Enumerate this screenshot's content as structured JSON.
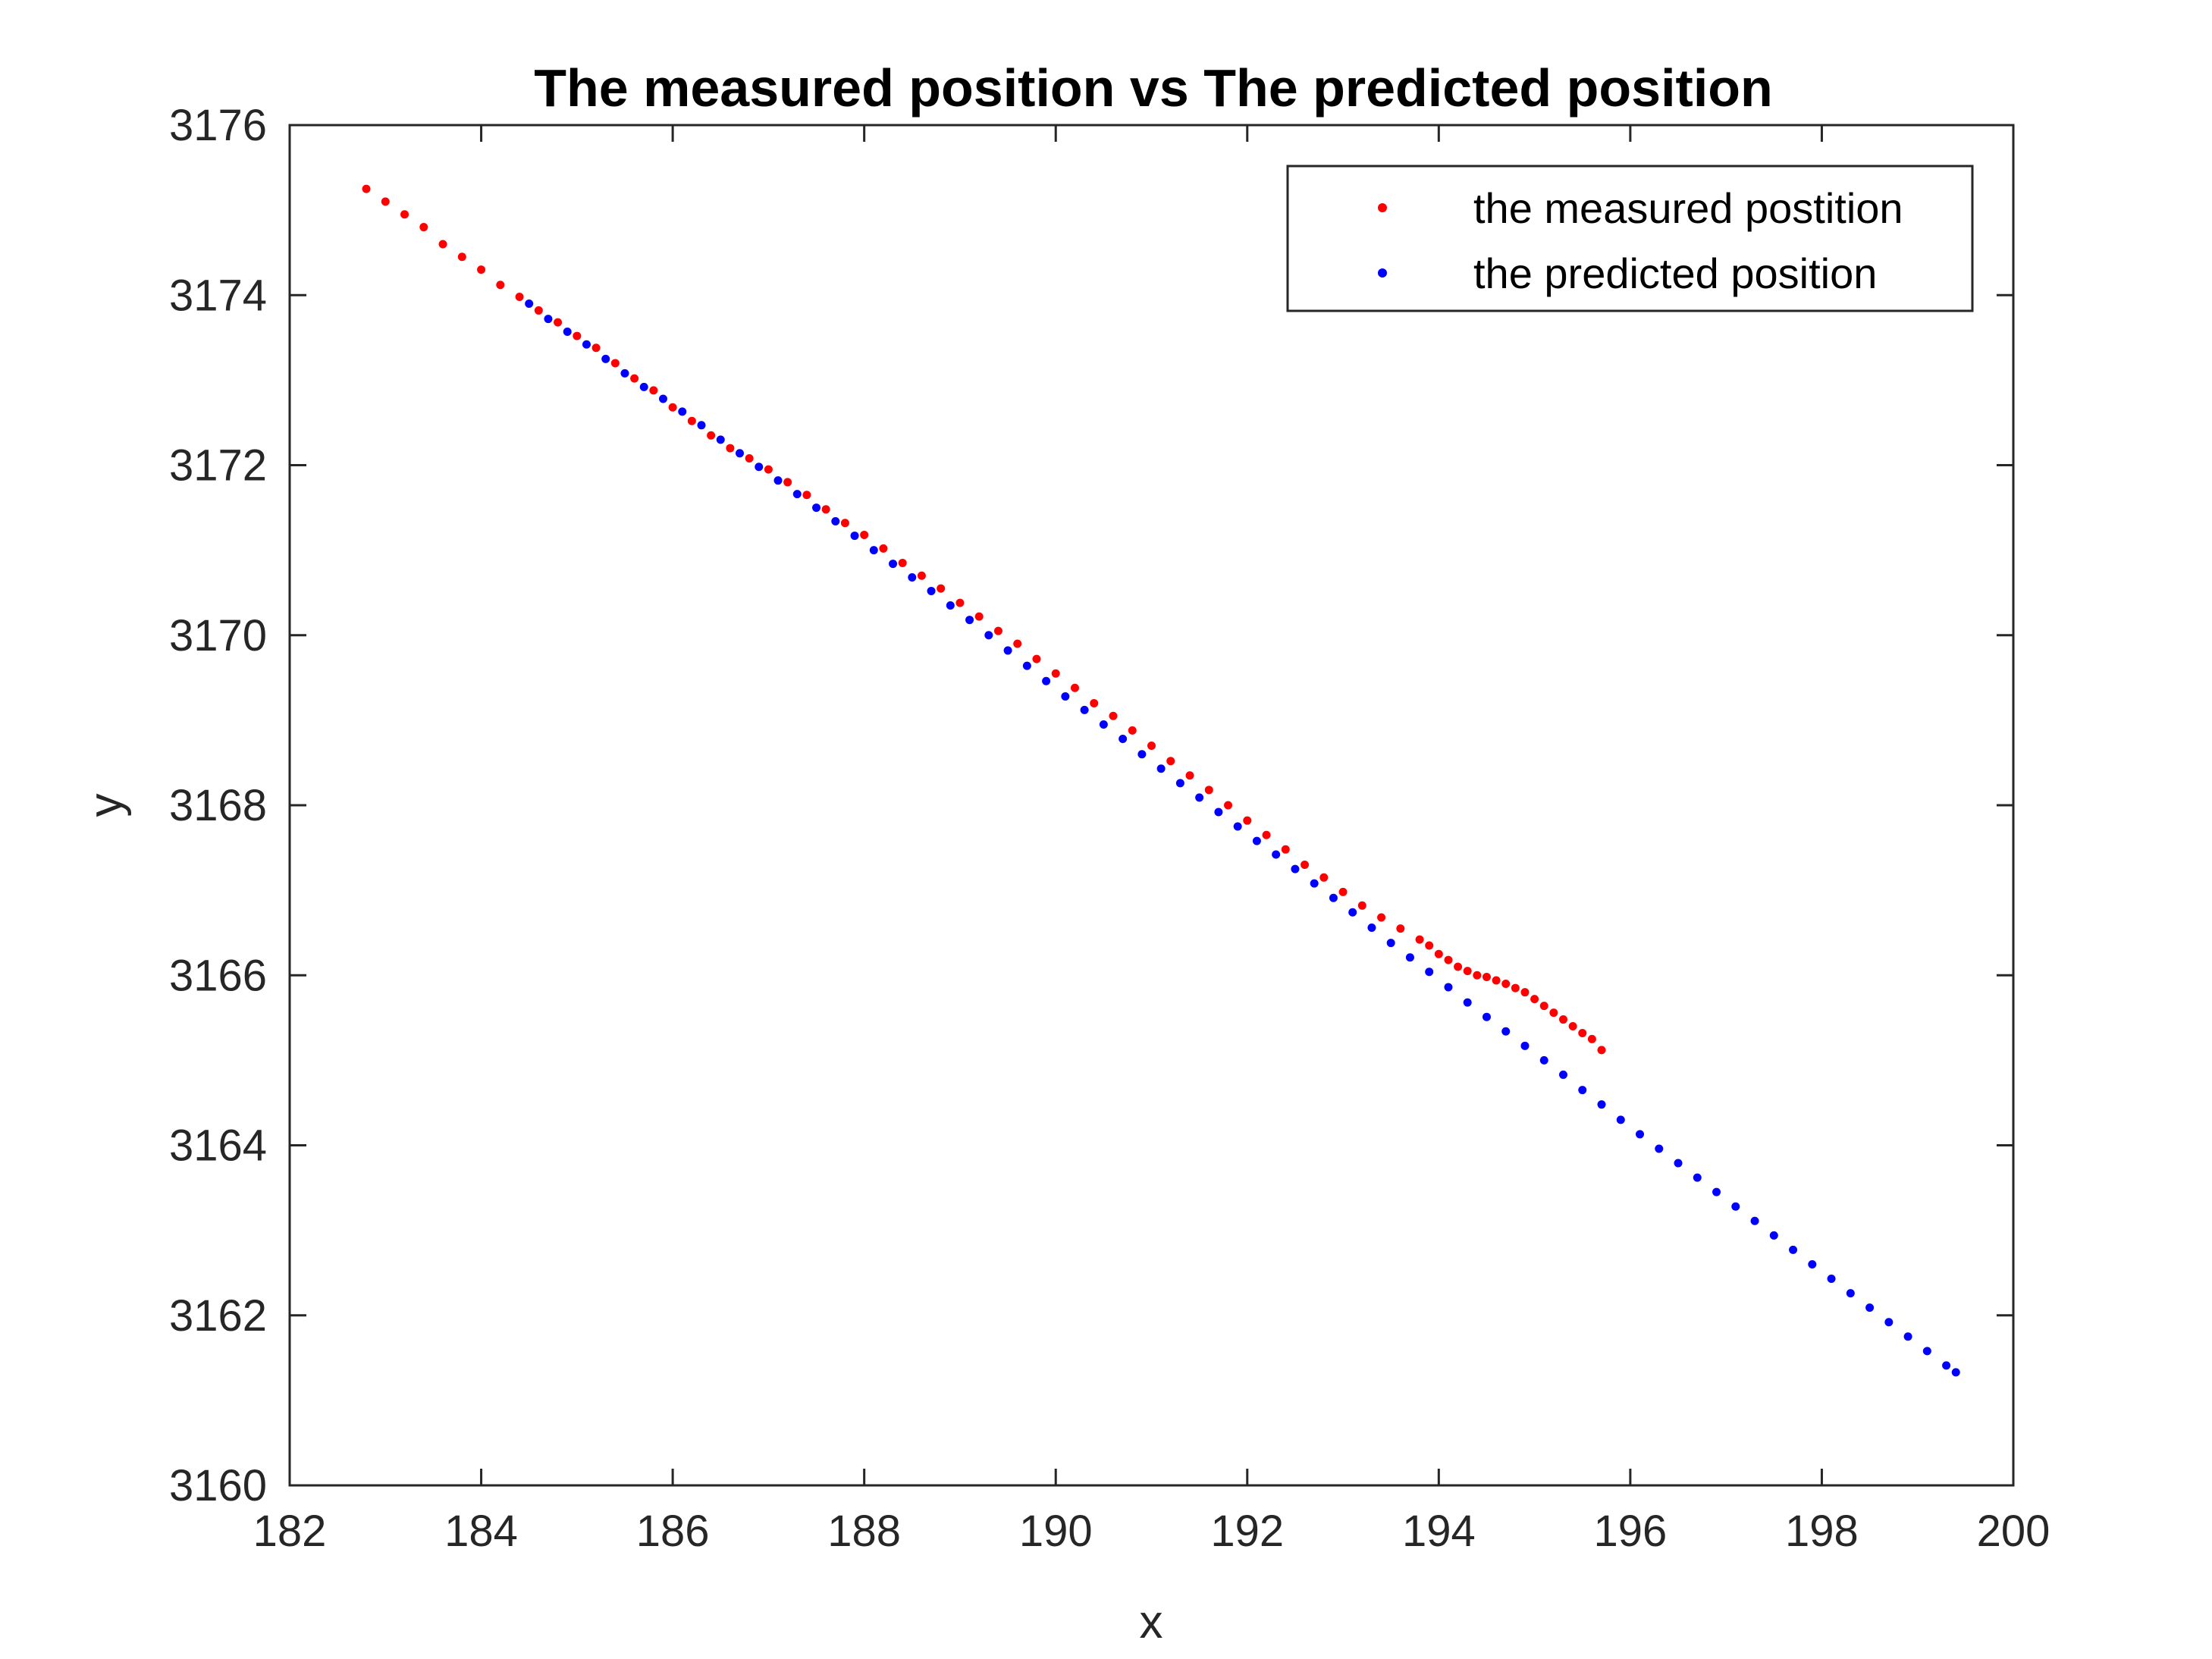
{
  "chart_data": {
    "type": "scatter",
    "title": "The measured position vs The predicted position",
    "xlabel": "x",
    "ylabel": "y",
    "xlim": [
      182,
      200
    ],
    "ylim": [
      3160,
      3176
    ],
    "xticks": [
      "182",
      "184",
      "186",
      "188",
      "190",
      "192",
      "194",
      "196",
      "198",
      "200"
    ],
    "yticks": [
      "3160",
      "3162",
      "3164",
      "3166",
      "3168",
      "3170",
      "3172",
      "3174",
      "3176"
    ],
    "grid": false,
    "legend_position": "top-right",
    "series": [
      {
        "name": "the measured postition",
        "color": "#ff0000",
        "points": [
          [
            182.8,
            3175.25
          ],
          [
            183.0,
            3175.1
          ],
          [
            183.2,
            3174.95
          ],
          [
            183.4,
            3174.8
          ],
          [
            183.6,
            3174.6
          ],
          [
            183.8,
            3174.45
          ],
          [
            184.0,
            3174.3
          ],
          [
            184.2,
            3174.12
          ],
          [
            184.4,
            3173.98
          ],
          [
            184.6,
            3173.82
          ],
          [
            184.8,
            3173.68
          ],
          [
            185.0,
            3173.52
          ],
          [
            185.2,
            3173.38
          ],
          [
            185.4,
            3173.2
          ],
          [
            185.6,
            3173.02
          ],
          [
            185.8,
            3172.88
          ],
          [
            186.0,
            3172.68
          ],
          [
            186.2,
            3172.52
          ],
          [
            186.4,
            3172.35
          ],
          [
            186.6,
            3172.2
          ],
          [
            186.8,
            3172.08
          ],
          [
            187.0,
            3171.95
          ],
          [
            187.2,
            3171.8
          ],
          [
            187.4,
            3171.65
          ],
          [
            187.6,
            3171.48
          ],
          [
            187.8,
            3171.32
          ],
          [
            188.0,
            3171.18
          ],
          [
            188.2,
            3171.02
          ],
          [
            188.4,
            3170.85
          ],
          [
            188.6,
            3170.7
          ],
          [
            188.8,
            3170.55
          ],
          [
            189.0,
            3170.38
          ],
          [
            189.2,
            3170.22
          ],
          [
            189.4,
            3170.05
          ],
          [
            189.6,
            3169.9
          ],
          [
            189.8,
            3169.72
          ],
          [
            190.0,
            3169.55
          ],
          [
            190.2,
            3169.38
          ],
          [
            190.4,
            3169.2
          ],
          [
            190.6,
            3169.05
          ],
          [
            190.8,
            3168.88
          ],
          [
            191.0,
            3168.7
          ],
          [
            191.2,
            3168.52
          ],
          [
            191.4,
            3168.35
          ],
          [
            191.6,
            3168.18
          ],
          [
            191.8,
            3168.0
          ],
          [
            192.0,
            3167.82
          ],
          [
            192.2,
            3167.65
          ],
          [
            192.4,
            3167.48
          ],
          [
            192.6,
            3167.3
          ],
          [
            192.8,
            3167.15
          ],
          [
            193.0,
            3166.98
          ],
          [
            193.2,
            3166.82
          ],
          [
            193.4,
            3166.68
          ],
          [
            193.6,
            3166.55
          ],
          [
            193.8,
            3166.42
          ],
          [
            193.9,
            3166.35
          ],
          [
            194.0,
            3166.25
          ],
          [
            194.1,
            3166.18
          ],
          [
            194.2,
            3166.1
          ],
          [
            194.3,
            3166.05
          ],
          [
            194.4,
            3166.0
          ],
          [
            194.5,
            3165.98
          ],
          [
            194.6,
            3165.94
          ],
          [
            194.7,
            3165.9
          ],
          [
            194.8,
            3165.85
          ],
          [
            194.9,
            3165.8
          ],
          [
            195.0,
            3165.72
          ],
          [
            195.1,
            3165.64
          ],
          [
            195.2,
            3165.56
          ],
          [
            195.3,
            3165.48
          ],
          [
            195.4,
            3165.4
          ],
          [
            195.5,
            3165.32
          ],
          [
            195.6,
            3165.25
          ],
          [
            195.7,
            3165.12
          ]
        ]
      },
      {
        "name": "the predicted position",
        "color": "#0000ff",
        "points": [
          [
            184.5,
            3173.9
          ],
          [
            184.7,
            3173.72
          ],
          [
            184.9,
            3173.57
          ],
          [
            185.1,
            3173.42
          ],
          [
            185.3,
            3173.25
          ],
          [
            185.5,
            3173.08
          ],
          [
            185.7,
            3172.92
          ],
          [
            185.9,
            3172.78
          ],
          [
            186.1,
            3172.63
          ],
          [
            186.3,
            3172.47
          ],
          [
            186.5,
            3172.3
          ],
          [
            186.7,
            3172.14
          ],
          [
            186.9,
            3171.98
          ],
          [
            187.1,
            3171.82
          ],
          [
            187.3,
            3171.66
          ],
          [
            187.5,
            3171.5
          ],
          [
            187.7,
            3171.34
          ],
          [
            187.9,
            3171.17
          ],
          [
            188.1,
            3171.0
          ],
          [
            188.3,
            3170.84
          ],
          [
            188.5,
            3170.68
          ],
          [
            188.7,
            3170.52
          ],
          [
            188.9,
            3170.35
          ],
          [
            189.1,
            3170.18
          ],
          [
            189.3,
            3170.0
          ],
          [
            189.5,
            3169.82
          ],
          [
            189.7,
            3169.64
          ],
          [
            189.9,
            3169.46
          ],
          [
            190.1,
            3169.28
          ],
          [
            190.3,
            3169.12
          ],
          [
            190.5,
            3168.95
          ],
          [
            190.7,
            3168.78
          ],
          [
            190.9,
            3168.6
          ],
          [
            191.1,
            3168.43
          ],
          [
            191.3,
            3168.26
          ],
          [
            191.5,
            3168.09
          ],
          [
            191.7,
            3167.92
          ],
          [
            191.9,
            3167.75
          ],
          [
            192.1,
            3167.58
          ],
          [
            192.3,
            3167.42
          ],
          [
            192.5,
            3167.25
          ],
          [
            192.7,
            3167.08
          ],
          [
            192.9,
            3166.91
          ],
          [
            193.1,
            3166.74
          ],
          [
            193.3,
            3166.56
          ],
          [
            193.5,
            3166.38
          ],
          [
            193.7,
            3166.21
          ],
          [
            193.9,
            3166.04
          ],
          [
            194.1,
            3165.86
          ],
          [
            194.3,
            3165.68
          ],
          [
            194.5,
            3165.51
          ],
          [
            194.7,
            3165.34
          ],
          [
            194.9,
            3165.17
          ],
          [
            195.1,
            3165.0
          ],
          [
            195.3,
            3164.83
          ],
          [
            195.5,
            3164.65
          ],
          [
            195.7,
            3164.48
          ],
          [
            195.9,
            3164.3
          ],
          [
            196.1,
            3164.13
          ],
          [
            196.3,
            3163.96
          ],
          [
            196.5,
            3163.79
          ],
          [
            196.7,
            3163.62
          ],
          [
            196.9,
            3163.45
          ],
          [
            197.1,
            3163.28
          ],
          [
            197.3,
            3163.11
          ],
          [
            197.5,
            3162.94
          ],
          [
            197.7,
            3162.77
          ],
          [
            197.9,
            3162.6
          ],
          [
            198.1,
            3162.43
          ],
          [
            198.3,
            3162.26
          ],
          [
            198.5,
            3162.09
          ],
          [
            198.7,
            3161.92
          ],
          [
            198.9,
            3161.75
          ],
          [
            199.1,
            3161.58
          ],
          [
            199.3,
            3161.41
          ],
          [
            199.4,
            3161.33
          ]
        ]
      }
    ]
  }
}
